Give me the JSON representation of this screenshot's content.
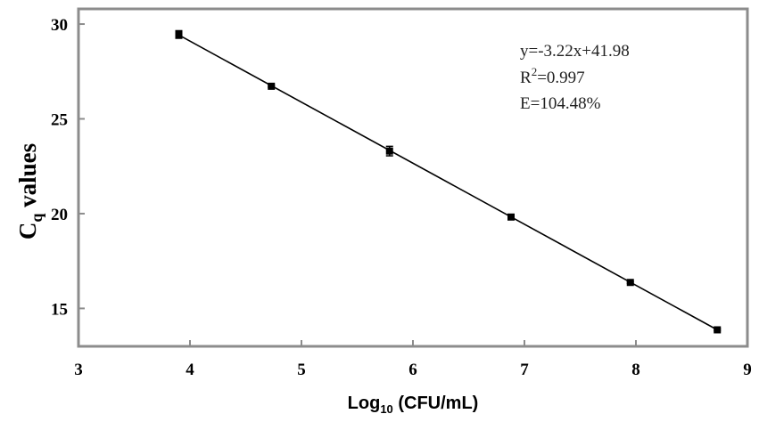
{
  "chart_data": {
    "type": "scatter",
    "xlabel": {
      "main": "Log",
      "sub": "10",
      "rest": " (CFU/mL)"
    },
    "ylabel": {
      "main": "C",
      "sub": "q",
      "rest": " values"
    },
    "xlim": [
      3,
      9
    ],
    "ylim": [
      13,
      30.8
    ],
    "xticks": [
      3,
      4,
      5,
      6,
      7,
      8,
      9
    ],
    "yticks": [
      15,
      20,
      25,
      30
    ],
    "grid": false,
    "series": [
      {
        "points": [
          {
            "x": 3.9,
            "y": 29.45,
            "err": 0.2
          },
          {
            "x": 4.73,
            "y": 26.72,
            "err": 0.05
          },
          {
            "x": 5.79,
            "y": 23.3,
            "err": 0.25
          },
          {
            "x": 6.88,
            "y": 19.82,
            "err": 0.05
          },
          {
            "x": 7.95,
            "y": 16.37,
            "err": 0.05
          },
          {
            "x": 8.73,
            "y": 13.87,
            "err": 0.05
          }
        ]
      }
    ],
    "fit": {
      "slope": -3.22,
      "intercept": 41.98,
      "x_range": [
        3.9,
        8.73
      ]
    },
    "annotations": {
      "equation": "y=-3.22x+41.98",
      "r2_prefix": "R",
      "r2_sup": "2",
      "r2_value": "=0.997",
      "efficiency": "E=104.48%"
    },
    "colors": {
      "frame": "#8c8c8c",
      "marker": "#000000",
      "line": "#000000"
    }
  }
}
